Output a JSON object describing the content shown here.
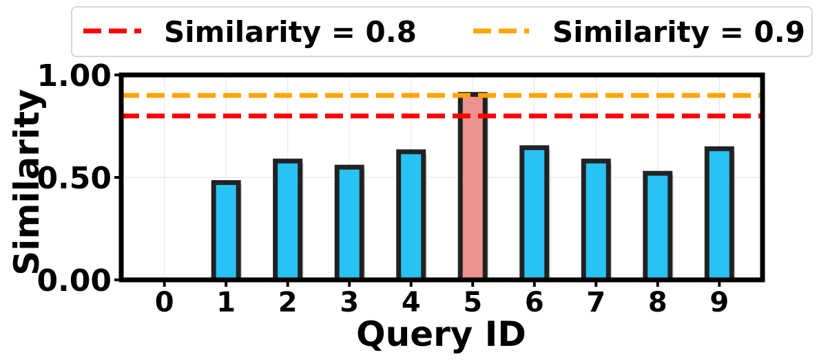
{
  "chart_data": {
    "type": "bar",
    "categories": [
      "0",
      "1",
      "2",
      "3",
      "4",
      "5",
      "6",
      "7",
      "8",
      "9"
    ],
    "values": [
      0.0,
      0.475,
      0.58,
      0.55,
      0.625,
      0.905,
      0.645,
      0.58,
      0.52,
      0.64
    ],
    "highlight_index": 5,
    "colors": {
      "bar": "#29c2f4",
      "bar_highlight": "#ec9290",
      "bar_edge": "#222222",
      "shadow": "#c8c8c8",
      "grid": "#e6e6e6",
      "axes": "#000000"
    },
    "reference_lines": [
      {
        "label": "Similarity = 0.8",
        "y": 0.8,
        "color": "#ff0000",
        "style": "dashed"
      },
      {
        "label": "Similarity = 0.9",
        "y": 0.9,
        "color": "#ffa500",
        "style": "dashed"
      }
    ],
    "title": "",
    "xlabel": "Query ID",
    "ylabel": "Similarity",
    "ylim": [
      0.0,
      1.0
    ],
    "yticks": [
      "0.00",
      "0.50",
      "1.00"
    ],
    "ytick_values": [
      0.0,
      0.5,
      1.0
    ],
    "grid": true,
    "legend_position": "top (above plot, two columns)"
  }
}
